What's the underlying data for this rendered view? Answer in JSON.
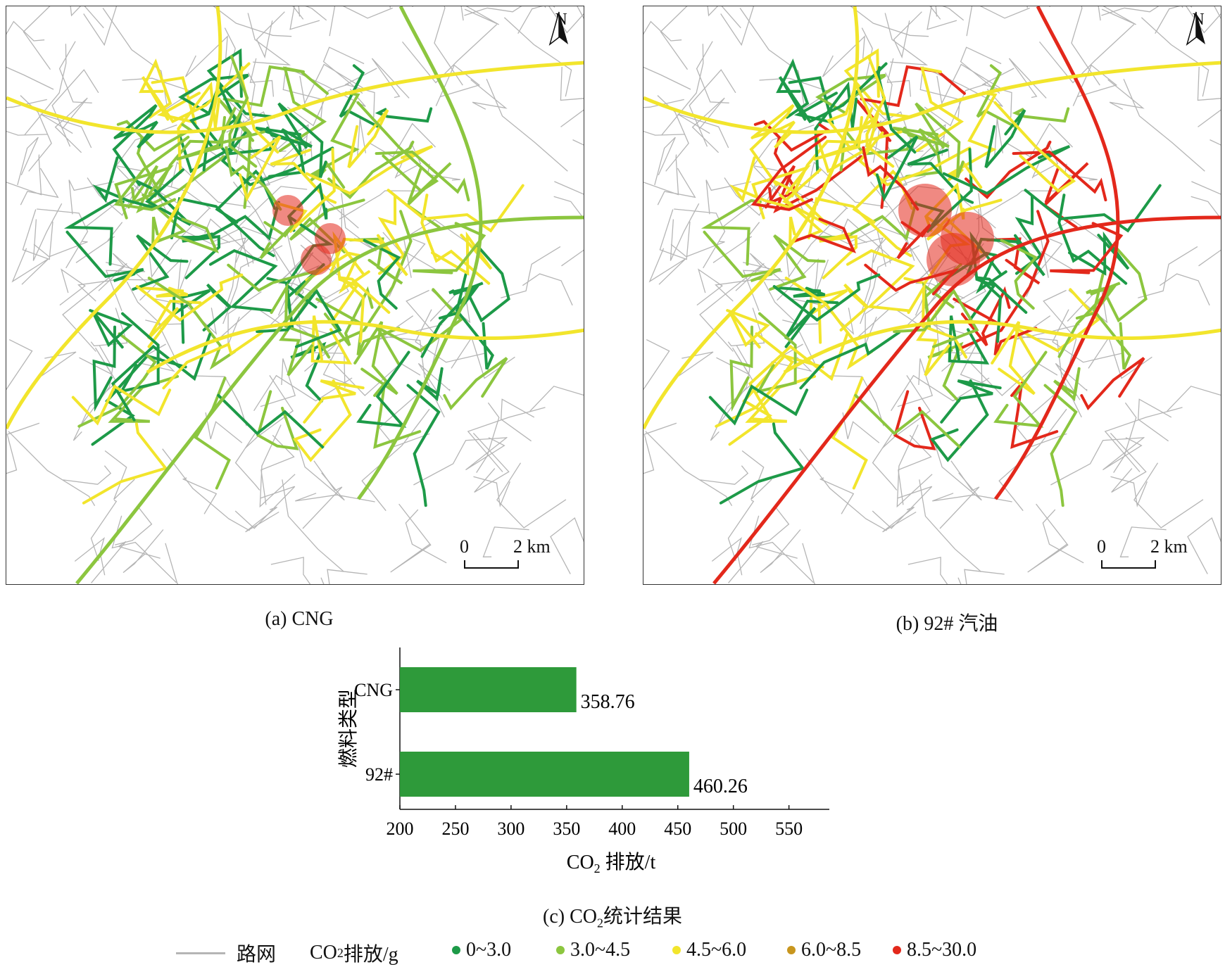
{
  "maps": [
    {
      "id": "cng",
      "caption": "(a) CNG",
      "north_label": "N",
      "scale_zero": "0",
      "scale_label": "2 km",
      "dominant_class": "0~3.0",
      "hot_class": "8.5~30.0"
    },
    {
      "id": "gasoline92",
      "caption": "(b) 92# 汽油",
      "north_label": "N",
      "scale_zero": "0",
      "scale_label": "2 km",
      "dominant_class": "4.5~6.0",
      "hot_class": "8.5~30.0"
    }
  ],
  "chart_data": {
    "type": "bar",
    "orientation": "horizontal",
    "caption_prefix": "(c) CO",
    "caption_sub": "2",
    "caption_suffix": "统计结果",
    "categories": [
      "CNG",
      "92#"
    ],
    "values": [
      358.76,
      460.26
    ],
    "value_labels": [
      "358.76",
      "460.26"
    ],
    "ylabel": "燃料类型",
    "xlabel_prefix": "CO",
    "xlabel_sub": "2",
    "xlabel_suffix": " 排放/t",
    "xlim": [
      200,
      580
    ],
    "xticks": [
      200,
      250,
      300,
      350,
      400,
      450,
      500,
      550
    ],
    "bar_color": "#2e9a3a"
  },
  "legend": {
    "road_label": "路网",
    "road_color": "#b5b5b5",
    "title_prefix": "CO",
    "title_sub": "2",
    "title_suffix": " 排放/g",
    "classes": [
      {
        "label": "0~3.0",
        "color": "#1d9a48"
      },
      {
        "label": "3.0~4.5",
        "color": "#8cc63f"
      },
      {
        "label": "4.5~6.0",
        "color": "#f2e52c"
      },
      {
        "label": "6.0~8.5",
        "color": "#c8961e"
      },
      {
        "label": "8.5~30.0",
        "color": "#e3281b"
      }
    ]
  }
}
